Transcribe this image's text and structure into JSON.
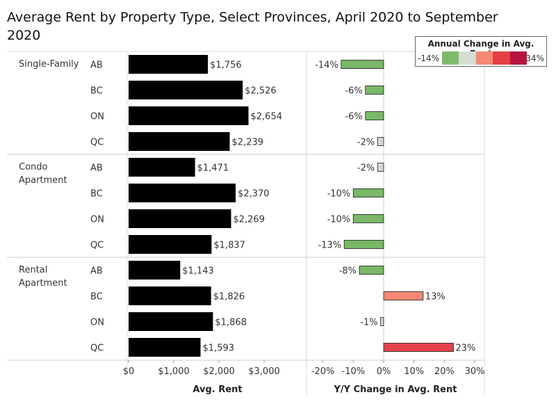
{
  "chart_data": {
    "type": "bar",
    "title": "Average Rent by Property Type, Select Provinces, April 2020 to September 2020",
    "groups": [
      {
        "label_lines": [
          "Single-Family"
        ],
        "rows": [
          {
            "province": "AB",
            "avg_rent": 1756,
            "avg_rent_label": "$1,756",
            "yoy": -14,
            "yoy_label": "-14%"
          },
          {
            "province": "BC",
            "avg_rent": 2526,
            "avg_rent_label": "$2,526",
            "yoy": -6,
            "yoy_label": "-6%"
          },
          {
            "province": "ON",
            "avg_rent": 2654,
            "avg_rent_label": "$2,654",
            "yoy": -6,
            "yoy_label": "-6%"
          },
          {
            "province": "QC",
            "avg_rent": 2239,
            "avg_rent_label": "$2,239",
            "yoy": -2,
            "yoy_label": "-2%"
          }
        ]
      },
      {
        "label_lines": [
          "Condo",
          "Apartment"
        ],
        "rows": [
          {
            "province": "AB",
            "avg_rent": 1471,
            "avg_rent_label": "$1,471",
            "yoy": -2,
            "yoy_label": "-2%"
          },
          {
            "province": "BC",
            "avg_rent": 2370,
            "avg_rent_label": "$2,370",
            "yoy": -10,
            "yoy_label": "-10%"
          },
          {
            "province": "ON",
            "avg_rent": 2269,
            "avg_rent_label": "$2,269",
            "yoy": -10,
            "yoy_label": "-10%"
          },
          {
            "province": "QC",
            "avg_rent": 1837,
            "avg_rent_label": "$1,837",
            "yoy": -13,
            "yoy_label": "-13%"
          }
        ]
      },
      {
        "label_lines": [
          "Rental",
          "Apartment"
        ],
        "rows": [
          {
            "province": "AB",
            "avg_rent": 1143,
            "avg_rent_label": "$1,143",
            "yoy": -8,
            "yoy_label": "-8%"
          },
          {
            "province": "BC",
            "avg_rent": 1826,
            "avg_rent_label": "$1,826",
            "yoy": 13,
            "yoy_label": "13%"
          },
          {
            "province": "ON",
            "avg_rent": 1868,
            "avg_rent_label": "$1,868",
            "yoy": -1,
            "yoy_label": "-1%"
          },
          {
            "province": "QC",
            "avg_rent": 1593,
            "avg_rent_label": "$1,593",
            "yoy": 23,
            "yoy_label": "23%"
          }
        ]
      }
    ],
    "rent_axis": {
      "label": "Avg. Rent",
      "range": [
        0,
        3200
      ],
      "ticks": [
        0,
        1000,
        2000,
        3000
      ],
      "tick_labels": [
        "$0",
        "$1,000",
        "$2,000",
        "$3,000"
      ]
    },
    "yoy_axis": {
      "label": "Y/Y Change in Avg. Rent",
      "range": [
        -25,
        33
      ],
      "ticks": [
        -20,
        -10,
        0,
        10,
        20,
        30
      ],
      "tick_labels": [
        "-20%",
        "-10%",
        "0%",
        "10%",
        "20%",
        "30%"
      ]
    },
    "legend": {
      "title": "Annual Change in Avg. Rent",
      "min_label": "-14%",
      "max_label": "34%",
      "colors": [
        "#7dbb6c",
        "#d5dcd1",
        "#f48a74",
        "#e43f45",
        "#b6143e"
      ]
    },
    "colors": {
      "rent_bar": "#000000",
      "negative_strong": "#78b866",
      "negative_weak": "#d3d9cf",
      "positive_mid": "#f58872",
      "positive_high": "#e3434a",
      "bar_outline": "#1a1a1a"
    }
  }
}
